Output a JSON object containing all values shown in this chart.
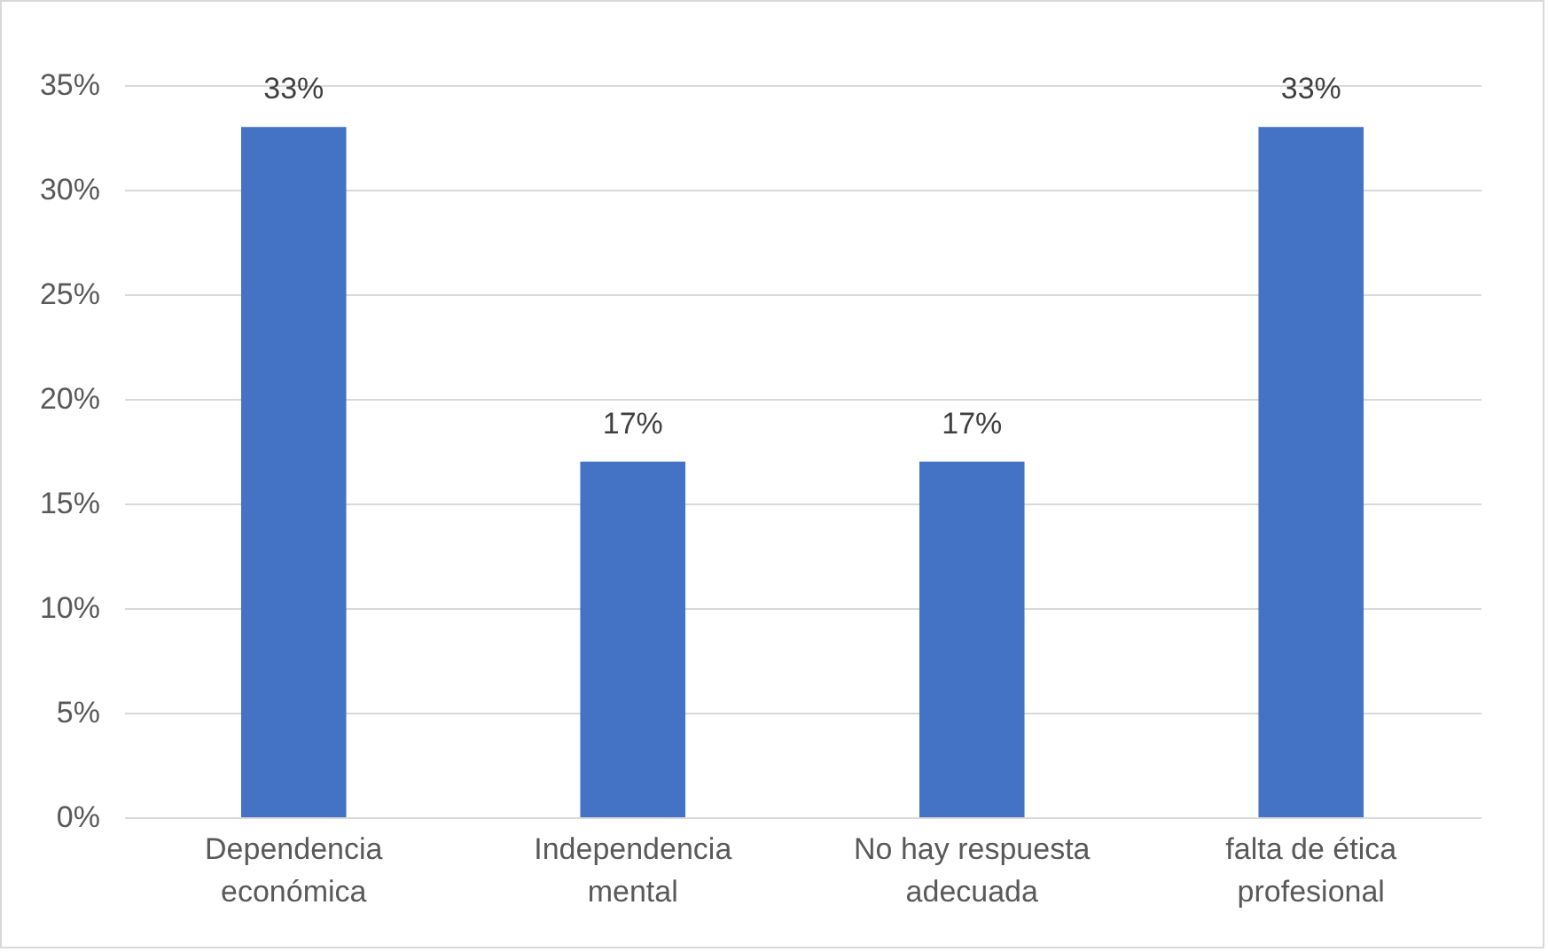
{
  "chart_data": {
    "type": "bar",
    "categories": [
      "Dependencia económica",
      "Independencia mental",
      "No hay respuesta adecuada",
      "falta de ética profesional"
    ],
    "values": [
      33,
      17,
      17,
      33
    ],
    "value_labels": [
      "33%",
      "17%",
      "17%",
      "33%"
    ],
    "color": "#4472c4",
    "ylim": [
      0,
      35
    ],
    "yticks": [
      {
        "value": 0,
        "label": "0%"
      },
      {
        "value": 5,
        "label": "5%"
      },
      {
        "value": 10,
        "label": "10%"
      },
      {
        "value": 15,
        "label": "15%"
      },
      {
        "value": 20,
        "label": "20%"
      },
      {
        "value": 25,
        "label": "25%"
      },
      {
        "value": 30,
        "label": "30%"
      },
      {
        "value": 35,
        "label": "35%"
      }
    ],
    "grid": true
  }
}
